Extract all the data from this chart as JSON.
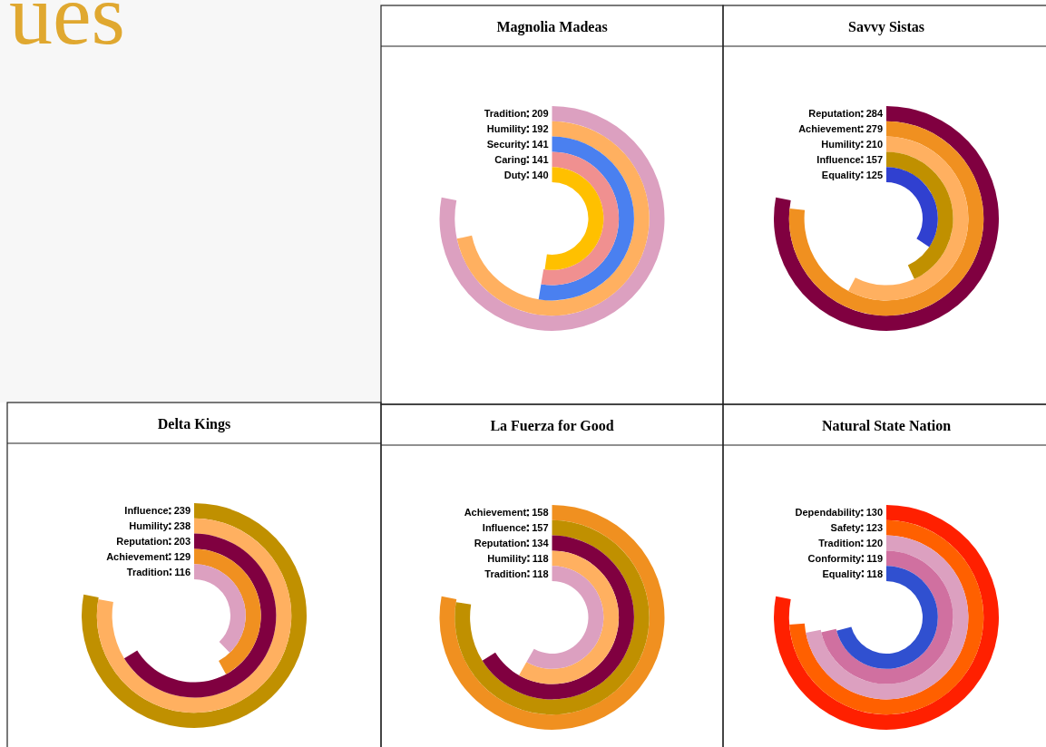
{
  "chart_data": [
    {
      "type": "other",
      "title": "ues"
    },
    {
      "type": "other",
      "title": "Magnolia Madeas",
      "categories": [
        "Tradition",
        "Humility",
        "Security",
        "Caring",
        "Duty"
      ],
      "values": [
        209,
        192,
        141,
        141,
        140
      ],
      "colors": [
        "#dca0c0",
        "#ffb060",
        "#4a80f0",
        "#f09090",
        "#ffc000"
      ],
      "data_labels": true
    },
    {
      "type": "other",
      "title": "Savvy Sistas",
      "categories": [
        "Reputation",
        "Achievement",
        "Humility",
        "Influence",
        "Equality"
      ],
      "values": [
        284,
        279,
        210,
        157,
        125
      ],
      "colors": [
        "#800040",
        "#f09020",
        "#ffb060",
        "#c09000",
        "#3040d0"
      ],
      "data_labels": true
    },
    {
      "type": "other",
      "title": "Delta Kings",
      "categories": [
        "Influence",
        "Humility",
        "Reputation",
        "Achievement",
        "Tradition"
      ],
      "values": [
        239,
        238,
        203,
        129,
        116
      ],
      "colors": [
        "#c09000",
        "#ffb060",
        "#800040",
        "#f09020",
        "#dca0c0"
      ],
      "data_labels": true
    },
    {
      "type": "other",
      "title": "La Fuerza for Good",
      "categories": [
        "Achievement",
        "Influence",
        "Reputation",
        "Humility",
        "Tradition"
      ],
      "values": [
        158,
        157,
        134,
        118,
        118
      ],
      "colors": [
        "#f09020",
        "#c09000",
        "#800040",
        "#ffb060",
        "#dca0c0"
      ],
      "data_labels": true
    },
    {
      "type": "other",
      "title": "Natural State Nation",
      "categories": [
        "Dependability",
        "Safety",
        "Tradition",
        "Conformity",
        "Equality"
      ],
      "values": [
        130,
        123,
        120,
        119,
        118
      ],
      "colors": [
        "#ff2000",
        "#ff6000",
        "#dca0c0",
        "#d070a0",
        "#3050d0"
      ],
      "data_labels": true
    }
  ]
}
